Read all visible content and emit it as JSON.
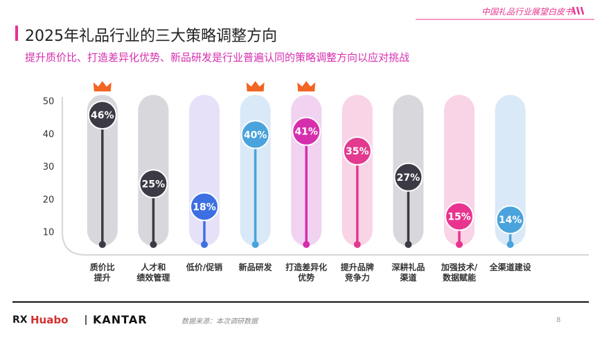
{
  "header": {
    "report": "中国礼品行业展望白皮书"
  },
  "chart_data": {
    "type": "lollipop",
    "title": "2025年礼品行业的三大策略调整方向",
    "subtitle": "提升质价比、打造差异化优势、新品研发是行业普遍认同的策略调整方向以应对挑战",
    "categories": [
      "质价比\n提升",
      "人才和\n绩效管理",
      "低价/促销",
      "新品研发",
      "打造差异化\n优势",
      "提升品牌\n竞争力",
      "深耕礼品\n渠道",
      "加强技术/\n数据赋能",
      "全渠道建设"
    ],
    "values": [
      46,
      25,
      18,
      40,
      41,
      35,
      27,
      15,
      14
    ],
    "value_labels": [
      "46%",
      "25%",
      "18%",
      "40%",
      "41%",
      "35%",
      "27%",
      "15%",
      "14%"
    ],
    "colors": [
      "#3b3a45",
      "#3b3a45",
      "#3d6fe3",
      "#4aa3dc",
      "#d62fae",
      "#e23a8f",
      "#3b3a45",
      "#e8348f",
      "#4aa3dc"
    ],
    "band_colors": [
      "#d8d8dc",
      "#d8d8dc",
      "#e6e1f8",
      "#d9e9f7",
      "#f1d2f1",
      "#f9d3e6",
      "#d8d8dc",
      "#f9d3e6",
      "#d9e9f7"
    ],
    "ylim": [
      6,
      53
    ],
    "yticks": [
      10,
      20,
      30,
      40,
      50
    ]
  },
  "footer": {
    "brand": "Huabo",
    "partner": "KANTAR",
    "source": "数据来源：本次调研数据",
    "page": "8"
  }
}
